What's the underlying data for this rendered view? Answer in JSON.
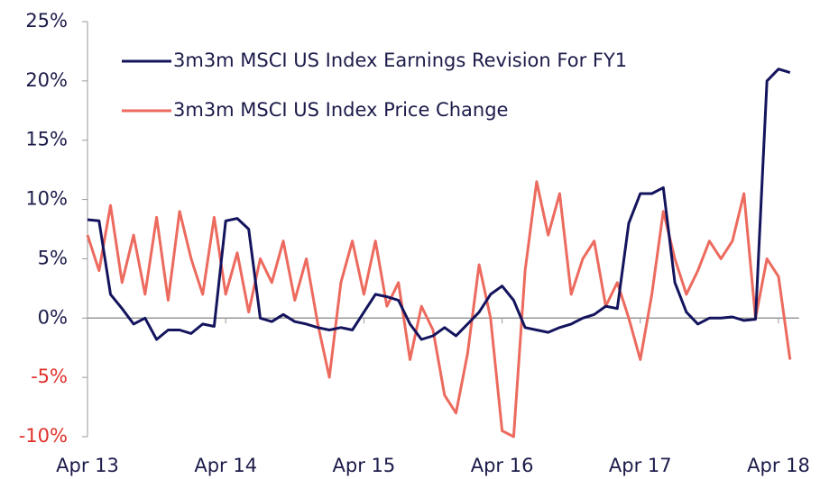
{
  "chart_data": {
    "type": "line",
    "categories": [
      "Apr 13",
      null,
      null,
      null,
      null,
      null,
      null,
      null,
      null,
      null,
      null,
      null,
      "Apr 14",
      null,
      null,
      null,
      null,
      null,
      null,
      null,
      null,
      null,
      null,
      null,
      "Apr 15",
      null,
      null,
      null,
      null,
      null,
      null,
      null,
      null,
      null,
      null,
      null,
      "Apr 16",
      null,
      null,
      null,
      null,
      null,
      null,
      null,
      null,
      null,
      null,
      null,
      "Apr 17",
      null,
      null,
      null,
      null,
      null,
      null,
      null,
      null,
      null,
      null,
      null,
      "Apr 18",
      null
    ],
    "series": [
      {
        "name": "3m3m MSCI US Index Earnings Revision For FY1",
        "color": "#14145e",
        "values": [
          8.3,
          8.2,
          2,
          0.8,
          -0.5,
          0,
          -1.8,
          -1,
          -1,
          -1.3,
          -0.5,
          -0.7,
          8.2,
          8.4,
          7.5,
          0,
          -0.3,
          0.3,
          -0.3,
          -0.5,
          -0.8,
          -1,
          -0.8,
          -1,
          0.5,
          2,
          1.8,
          1.5,
          -0.5,
          -1.8,
          -1.5,
          -0.8,
          -1.5,
          -0.5,
          0.5,
          2,
          2.7,
          1.5,
          -0.8,
          -1,
          -1.2,
          -0.8,
          -0.5,
          0,
          0.3,
          1,
          0.8,
          8,
          10.5,
          10.5,
          11,
          3,
          0.5,
          -0.5,
          0,
          0,
          0.1,
          -0.2,
          -0.1,
          20,
          21,
          20.7
        ]
      },
      {
        "name": "3m3m MSCI US Index Price Change",
        "color": "#ec6a5e",
        "values": [
          7,
          4,
          9.5,
          3,
          7,
          2,
          8.5,
          1.5,
          9,
          5,
          2,
          8.5,
          2,
          5.5,
          0.5,
          5,
          3,
          6.5,
          1.5,
          5,
          -0.5,
          -5,
          3,
          6.5,
          2,
          6.5,
          1,
          3,
          -3.5,
          1,
          -1,
          -6.5,
          -8,
          -3,
          4.5,
          0,
          -9.5,
          -10,
          4,
          11.5,
          7,
          10.5,
          2,
          5,
          6.5,
          1,
          3,
          0,
          -3.5,
          2,
          9,
          5,
          2,
          4,
          6.5,
          5,
          6.5,
          10.5,
          0,
          5,
          3.5,
          -3.5
        ]
      }
    ],
    "ylim": [
      -10,
      25
    ],
    "yticks": [
      {
        "value": -10,
        "label": "-10%"
      },
      {
        "value": -5,
        "label": "-5%"
      },
      {
        "value": 0,
        "label": "0%"
      },
      {
        "value": 5,
        "label": "5%"
      },
      {
        "value": 10,
        "label": "10%"
      },
      {
        "value": 15,
        "label": "15%"
      },
      {
        "value": 20,
        "label": "20%"
      },
      {
        "value": 25,
        "label": "25%"
      }
    ],
    "negative_tick_color": "#e0302a"
  }
}
